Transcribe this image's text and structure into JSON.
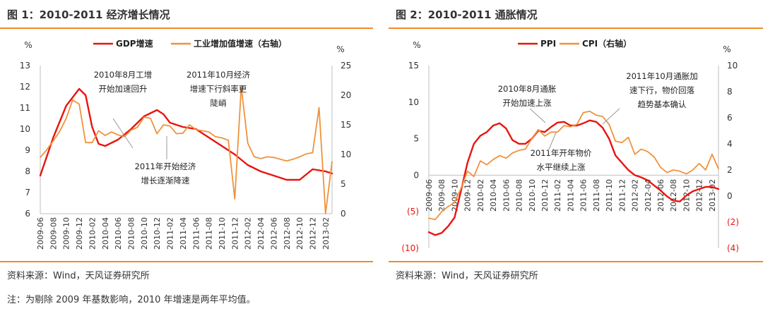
{
  "colors": {
    "primary": "#e8150f",
    "secondary": "#f0923c",
    "rule": "#f28c28",
    "text": "#333333"
  },
  "figures": [
    {
      "title": "图 1：2010-2011 经济增长情况",
      "source": "资料来源：Wind，天风证券研究所",
      "chart_data": {
        "type": "line",
        "dual_axis": true,
        "left_unit": "%",
        "right_unit": "%",
        "ylim_left": [
          6,
          13
        ],
        "ylim_right": [
          0,
          25
        ],
        "left_ticks": [
          "6",
          "7",
          "8",
          "9",
          "10",
          "11",
          "12",
          "13"
        ],
        "right_ticks": [
          "0",
          "5",
          "10",
          "15",
          "20",
          "25"
        ],
        "x_start": "2009-06",
        "x_end": "2013-03",
        "x_ticks": [
          "2009-06",
          "2009-08",
          "2009-10",
          "2009-12",
          "2010-02",
          "2010-04",
          "2010-06",
          "2010-08",
          "2010-10",
          "2010-12",
          "2011-02",
          "2011-04",
          "2011-06",
          "2011-08",
          "2011-10",
          "2011-12",
          "2012-02",
          "2012-04",
          "2012-06",
          "2012-08",
          "2012-10",
          "2012-12",
          "2013-02"
        ],
        "legend": {
          "placement": "top-center"
        },
        "series": [
          {
            "name": "GDP增速",
            "axis": "left",
            "color": "#e8150f",
            "x": [
              "2009-06",
              "2009-08",
              "2009-10",
              "2009-12",
              "2010-01",
              "2010-02",
              "2010-03",
              "2010-04",
              "2010-06",
              "2010-08",
              "2010-10",
              "2010-12",
              "2011-01",
              "2011-02",
              "2011-04",
              "2011-06",
              "2011-08",
              "2011-10",
              "2011-12",
              "2012-02",
              "2012-04",
              "2012-06",
              "2012-08",
              "2012-10",
              "2012-12",
              "2013-02",
              "2013-03"
            ],
            "values": [
              7.8,
              9.6,
              11.1,
              11.9,
              11.6,
              10.1,
              9.3,
              9.2,
              9.5,
              10.0,
              10.6,
              10.9,
              10.7,
              10.3,
              10.1,
              10.0,
              9.6,
              9.2,
              8.8,
              8.3,
              8.0,
              7.8,
              7.6,
              7.6,
              8.1,
              8.0,
              7.9
            ]
          },
          {
            "name": "工业增加值增速（右轴）",
            "axis": "right",
            "color": "#f0923c",
            "x": [
              "2009-06",
              "2009-07",
              "2009-08",
              "2009-09",
              "2009-10",
              "2009-11",
              "2009-12",
              "2010-01",
              "2010-02",
              "2010-03",
              "2010-04",
              "2010-05",
              "2010-06",
              "2010-07",
              "2010-08",
              "2010-09",
              "2010-10",
              "2010-11",
              "2010-12",
              "2011-01",
              "2011-02",
              "2011-03",
              "2011-04",
              "2011-05",
              "2011-06",
              "2011-07",
              "2011-08",
              "2011-09",
              "2011-10",
              "2011-11",
              "2011-12",
              "2012-01",
              "2012-02",
              "2012-03",
              "2012-04",
              "2012-05",
              "2012-06",
              "2012-07",
              "2012-08",
              "2012-09",
              "2012-10",
              "2012-11",
              "2012-12",
              "2013-01",
              "2013-02",
              "2013-03"
            ],
            "values": [
              9.5,
              10.8,
              12.3,
              13.9,
              16.1,
              19.2,
              18.5,
              12.0,
              12.0,
              14.0,
              13.2,
              13.8,
              13.3,
              13.0,
              14.1,
              14.6,
              16.3,
              16.1,
              13.5,
              15.0,
              14.8,
              13.5,
              13.6,
              15.0,
              14.2,
              14.0,
              13.8,
              13.0,
              12.8,
              12.4,
              2.5,
              21.4,
              11.9,
              9.6,
              9.3,
              9.6,
              9.5,
              9.2,
              8.9,
              9.2,
              9.6,
              10.1,
              10.3,
              17.9,
              0.0,
              8.8
            ]
          }
        ],
        "annotations": [
          {
            "lines": [
              "2010年8月工增",
              "开始加速回升"
            ]
          },
          {
            "lines": [
              "2011年10月经济",
              "增速下行斜率更",
              "陡峭"
            ]
          },
          {
            "lines": [
              "2011年开始经济",
              "增长逐渐降速"
            ]
          }
        ]
      }
    },
    {
      "title": "图 2：2010-2011 通胀情况",
      "source": "资料来源：Wind，天风证券研究所",
      "chart_data": {
        "type": "line",
        "dual_axis": true,
        "left_unit": "%",
        "right_unit": "%",
        "ylim_left": [
          -10,
          15
        ],
        "ylim_right": [
          -4,
          10
        ],
        "left_ticks": [
          "(10)",
          "(5)",
          "0",
          "5",
          "10",
          "15"
        ],
        "right_ticks": [
          "(4)",
          "(2)",
          "0",
          "2",
          "4",
          "6",
          "8",
          "10"
        ],
        "x_start": "2009-06",
        "x_end": "2013-03",
        "x_ticks": [
          "2009-06",
          "2009-08",
          "2009-10",
          "2009-12",
          "2010-02",
          "2010-04",
          "2010-06",
          "2010-08",
          "2010-10",
          "2010-12",
          "2011-02",
          "2011-04",
          "2011-06",
          "2011-08",
          "2011-10",
          "2011-12",
          "2012-02",
          "2012-04",
          "2012-06",
          "2012-08",
          "2012-10",
          "2012-12",
          "2013-02"
        ],
        "legend": {
          "placement": "top-center"
        },
        "series": [
          {
            "name": "PPI",
            "axis": "left",
            "color": "#e8150f",
            "x": [
              "2009-06",
              "2009-07",
              "2009-08",
              "2009-09",
              "2009-10",
              "2009-11",
              "2009-12",
              "2010-01",
              "2010-02",
              "2010-03",
              "2010-04",
              "2010-05",
              "2010-06",
              "2010-07",
              "2010-08",
              "2010-09",
              "2010-10",
              "2010-11",
              "2010-12",
              "2011-01",
              "2011-02",
              "2011-03",
              "2011-04",
              "2011-05",
              "2011-06",
              "2011-07",
              "2011-08",
              "2011-09",
              "2011-10",
              "2011-11",
              "2011-12",
              "2012-01",
              "2012-02",
              "2012-03",
              "2012-04",
              "2012-05",
              "2012-06",
              "2012-07",
              "2012-08",
              "2012-09",
              "2012-10",
              "2012-11",
              "2012-12",
              "2013-01",
              "2013-02",
              "2013-03"
            ],
            "values": [
              -7.8,
              -8.2,
              -7.9,
              -7.0,
              -5.8,
              -2.1,
              1.7,
              4.3,
              5.4,
              5.9,
              6.8,
              7.1,
              6.4,
              4.8,
              4.3,
              4.3,
              5.0,
              6.1,
              5.9,
              6.6,
              7.2,
              7.3,
              6.8,
              6.8,
              7.1,
              7.5,
              7.3,
              6.5,
              5.0,
              2.7,
              1.7,
              0.7,
              0.0,
              -0.3,
              -0.7,
              -1.4,
              -2.1,
              -2.9,
              -3.5,
              -3.6,
              -2.8,
              -2.2,
              -1.9,
              -1.6,
              -1.6,
              -1.9
            ]
          },
          {
            "name": "CPI（右轴）",
            "axis": "right",
            "color": "#f0923c",
            "x": [
              "2009-06",
              "2009-07",
              "2009-08",
              "2009-09",
              "2009-10",
              "2009-11",
              "2009-12",
              "2010-01",
              "2010-02",
              "2010-03",
              "2010-04",
              "2010-05",
              "2010-06",
              "2010-07",
              "2010-08",
              "2010-09",
              "2010-10",
              "2010-11",
              "2010-12",
              "2011-01",
              "2011-02",
              "2011-03",
              "2011-04",
              "2011-05",
              "2011-06",
              "2011-07",
              "2011-08",
              "2011-09",
              "2011-10",
              "2011-11",
              "2011-12",
              "2012-01",
              "2012-02",
              "2012-03",
              "2012-04",
              "2012-05",
              "2012-06",
              "2012-07",
              "2012-08",
              "2012-09",
              "2012-10",
              "2012-11",
              "2012-12",
              "2013-01",
              "2013-02",
              "2013-03"
            ],
            "values": [
              -1.7,
              -1.8,
              -1.2,
              -0.8,
              -0.5,
              0.6,
              1.9,
              1.5,
              2.7,
              2.4,
              2.8,
              3.1,
              2.9,
              3.3,
              3.5,
              3.6,
              4.4,
              5.1,
              4.6,
              4.9,
              4.9,
              5.4,
              5.3,
              5.5,
              6.4,
              6.5,
              6.2,
              6.1,
              5.5,
              4.2,
              4.1,
              4.5,
              3.2,
              3.6,
              3.4,
              3.0,
              2.2,
              1.8,
              2.0,
              1.9,
              1.7,
              2.0,
              2.5,
              2.0,
              3.2,
              2.1
            ]
          }
        ],
        "annotations": [
          {
            "lines": [
              "2010年8月通胀",
              "开始加速上涨"
            ]
          },
          {
            "lines": [
              "2011年10月通胀加",
              "速下行，物价回落",
              "趋势基本确认"
            ]
          },
          {
            "lines": [
              "2011年开年物价",
              "水平继续上涨"
            ]
          }
        ]
      }
    }
  ],
  "note": "注：为剔除 2009 年基数影响，2010 年增速是两年平均值。"
}
